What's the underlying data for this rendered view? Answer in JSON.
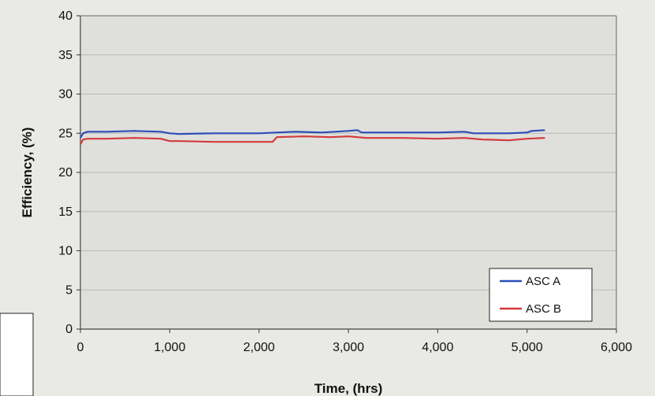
{
  "chart_data": {
    "type": "line",
    "title": "",
    "xlabel": "Time, (hrs)",
    "ylabel": "Efficiency, (%)",
    "xlim": [
      0,
      6000
    ],
    "ylim": [
      0,
      40
    ],
    "x_ticks": [
      0,
      1000,
      2000,
      3000,
      4000,
      5000,
      6000
    ],
    "x_tick_labels": [
      "0",
      "1,000",
      "2,000",
      "3,000",
      "4,000",
      "5,000",
      "6,000"
    ],
    "y_ticks": [
      0,
      5,
      10,
      15,
      20,
      25,
      30,
      35,
      40
    ],
    "y_tick_labels": [
      "0",
      "5",
      "10",
      "15",
      "20",
      "25",
      "30",
      "35",
      "40"
    ],
    "grid": "horizontal",
    "legend_position": "bottom-right",
    "series": [
      {
        "name": "ASC A",
        "color": "#2b4fb8",
        "points": [
          [
            0,
            24.4
          ],
          [
            30,
            25.0
          ],
          [
            80,
            25.2
          ],
          [
            300,
            25.2
          ],
          [
            600,
            25.3
          ],
          [
            900,
            25.2
          ],
          [
            1000,
            25.0
          ],
          [
            1100,
            24.9
          ],
          [
            1500,
            25.0
          ],
          [
            2000,
            25.0
          ],
          [
            2200,
            25.1
          ],
          [
            2400,
            25.2
          ],
          [
            2700,
            25.1
          ],
          [
            3000,
            25.3
          ],
          [
            3100,
            25.4
          ],
          [
            3150,
            25.1
          ],
          [
            3500,
            25.1
          ],
          [
            4000,
            25.1
          ],
          [
            4300,
            25.2
          ],
          [
            4400,
            25.0
          ],
          [
            4800,
            25.0
          ],
          [
            5000,
            25.1
          ],
          [
            5050,
            25.3
          ],
          [
            5200,
            25.4
          ]
        ]
      },
      {
        "name": "ASC B",
        "color": "#d43a3a",
        "points": [
          [
            0,
            23.6
          ],
          [
            30,
            24.2
          ],
          [
            80,
            24.3
          ],
          [
            300,
            24.3
          ],
          [
            600,
            24.4
          ],
          [
            900,
            24.3
          ],
          [
            1000,
            24.0
          ],
          [
            1100,
            24.0
          ],
          [
            1500,
            23.9
          ],
          [
            1900,
            23.9
          ],
          [
            2150,
            23.9
          ],
          [
            2200,
            24.5
          ],
          [
            2500,
            24.6
          ],
          [
            2800,
            24.5
          ],
          [
            3000,
            24.6
          ],
          [
            3200,
            24.4
          ],
          [
            3600,
            24.4
          ],
          [
            4000,
            24.3
          ],
          [
            4300,
            24.4
          ],
          [
            4500,
            24.2
          ],
          [
            4800,
            24.1
          ],
          [
            5000,
            24.3
          ],
          [
            5200,
            24.4
          ]
        ]
      }
    ]
  }
}
